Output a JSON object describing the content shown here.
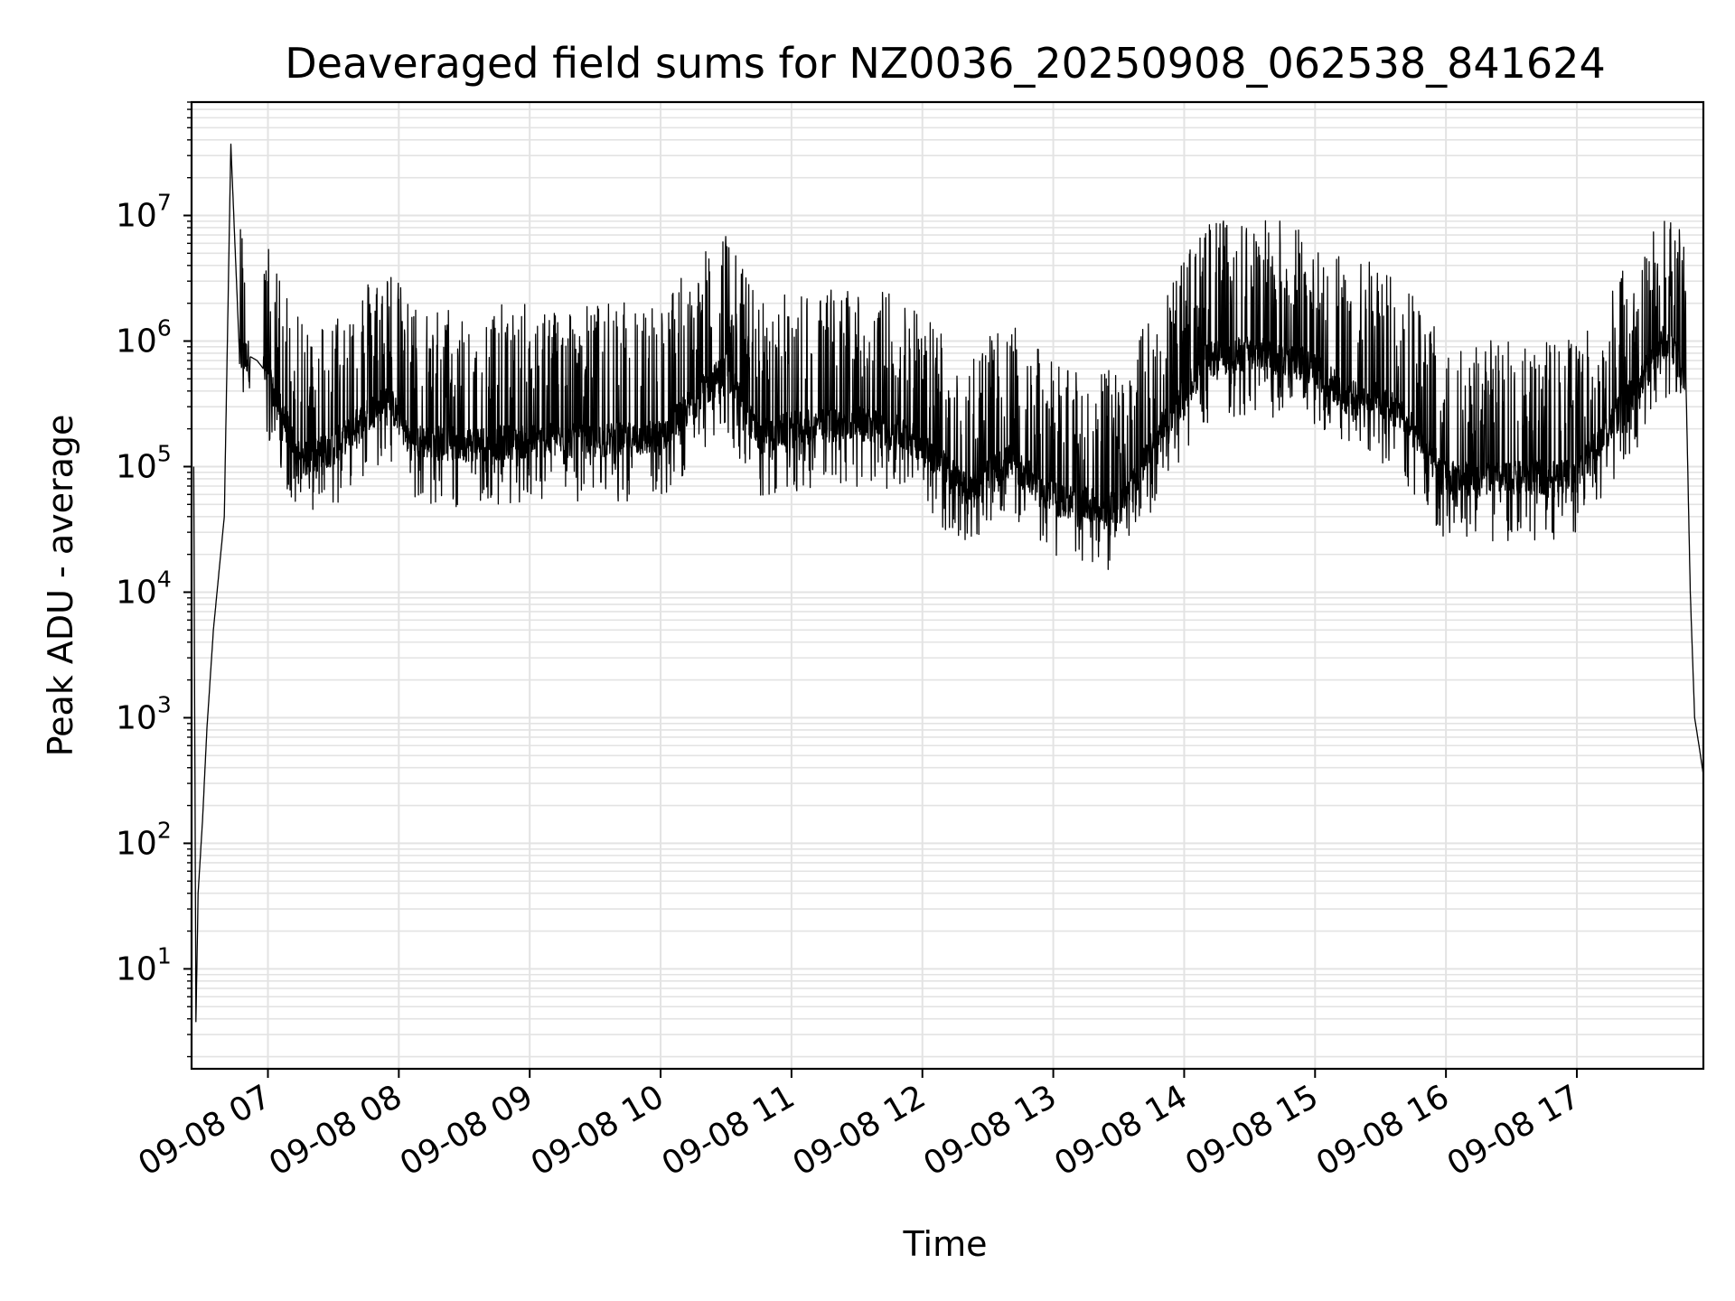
{
  "chart_data": {
    "type": "line",
    "title": "Deaveraged field sums for NZ0036_20250908_062538_841624",
    "xlabel": "Time",
    "ylabel": "Peak ADU - average",
    "yscale": "log",
    "xlim": [
      "2025-09-08 06:25",
      "2025-09-08 17:58"
    ],
    "ylim": [
      1.6,
      80000000
    ],
    "grid": true,
    "x_ticks": [
      "09-08 07",
      "09-08 08",
      "09-08 09",
      "09-08 10",
      "09-08 11",
      "09-08 12",
      "09-08 13",
      "09-08 14",
      "09-08 15",
      "09-08 16",
      "09-08 17"
    ],
    "y_ticks": [
      {
        "base": "10",
        "exp": "1"
      },
      {
        "base": "10",
        "exp": "2"
      },
      {
        "base": "10",
        "exp": "3"
      },
      {
        "base": "10",
        "exp": "4"
      },
      {
        "base": "10",
        "exp": "5"
      },
      {
        "base": "10",
        "exp": "6"
      },
      {
        "base": "10",
        "exp": "7"
      }
    ],
    "series": [
      {
        "color": "#000000",
        "x": [
          "06:26",
          "06:27",
          "06:28",
          "06:30",
          "06:32",
          "06:35",
          "06:40",
          "06:43",
          "06:47",
          "06:52",
          "06:55",
          "06:58",
          "07:15",
          "07:30",
          "07:45",
          "07:55",
          "08:05",
          "08:30",
          "09:00",
          "09:30",
          "10:00",
          "10:20",
          "10:30",
          "10:45",
          "11:00",
          "11:30",
          "11:45",
          "12:00",
          "12:10",
          "12:20",
          "12:40",
          "13:00",
          "13:30",
          "13:50",
          "14:10",
          "14:30",
          "14:50",
          "15:00",
          "15:15",
          "15:30",
          "15:40",
          "16:00",
          "16:30",
          "17:00",
          "17:30",
          "17:40",
          "17:45",
          "17:50",
          "17:52",
          "17:54",
          "17:56",
          "17:58"
        ],
        "y": [
          100000,
          3.8,
          40,
          150,
          800,
          5000,
          40000,
          37000000,
          750000,
          750000,
          700000,
          600000,
          110000,
          140000,
          250000,
          350000,
          160000,
          150000,
          160000,
          160000,
          170000,
          400000,
          600000,
          170000,
          200000,
          220000,
          200000,
          150000,
          100000,
          65000,
          110000,
          55000,
          45000,
          200000,
          700000,
          800000,
          700000,
          600000,
          350000,
          350000,
          250000,
          80000,
          80000,
          85000,
          500000,
          1000000,
          800000,
          500000,
          10000,
          1000,
          600,
          350
        ]
      }
    ]
  }
}
